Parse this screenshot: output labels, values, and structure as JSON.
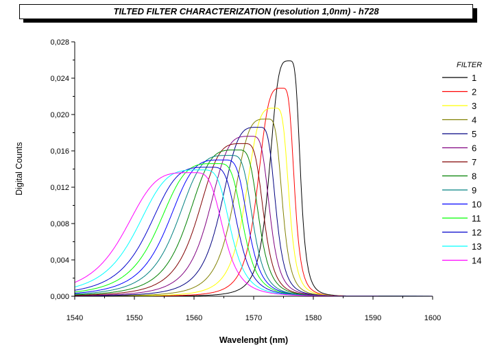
{
  "chart_data": {
    "type": "line",
    "title": "TILTED FILTER CHARACTERIZATION (resolution 1,0nm) - h728",
    "xlabel": "Wavelenght (nm)",
    "ylabel": "Digital Counts",
    "xlim": [
      1540,
      1600
    ],
    "ylim": [
      0,
      0.028
    ],
    "x_ticks": [
      1540,
      1550,
      1560,
      1570,
      1580,
      1590,
      1600
    ],
    "x_tick_labels": [
      "1540",
      "1550",
      "1560",
      "1570",
      "1580",
      "1590",
      "1600"
    ],
    "y_ticks": [
      0,
      0.004,
      0.008,
      0.012,
      0.016,
      0.02,
      0.024,
      0.028
    ],
    "y_tick_labels": [
      "0,000",
      "0,004",
      "0,008",
      "0,012",
      "0,016",
      "0,020",
      "0,024",
      "0,028"
    ],
    "grid": false,
    "legend_title": "FILTER",
    "legend_position": "right",
    "series": [
      {
        "name": "1",
        "color": "#000000",
        "peak_x": 1576.0,
        "peak_y": 0.0259,
        "left_width": 3.5,
        "right_width": 1.9
      },
      {
        "name": "2",
        "color": "#ff0000",
        "peak_x": 1574.8,
        "peak_y": 0.0229,
        "left_width": 4.3,
        "right_width": 2.1
      },
      {
        "name": "3",
        "color": "#ffff00",
        "peak_x": 1573.6,
        "peak_y": 0.0207,
        "left_width": 5.1,
        "right_width": 2.4
      },
      {
        "name": "4",
        "color": "#808000",
        "peak_x": 1572.3,
        "peak_y": 0.0195,
        "left_width": 5.9,
        "right_width": 2.6
      },
      {
        "name": "5",
        "color": "#000080",
        "peak_x": 1570.9,
        "peak_y": 0.0186,
        "left_width": 6.6,
        "right_width": 2.9
      },
      {
        "name": "6",
        "color": "#800080",
        "peak_x": 1569.6,
        "peak_y": 0.0176,
        "left_width": 7.3,
        "right_width": 3.2
      },
      {
        "name": "7",
        "color": "#800000",
        "peak_x": 1568.4,
        "peak_y": 0.0168,
        "left_width": 8.0,
        "right_width": 3.4
      },
      {
        "name": "8",
        "color": "#008000",
        "peak_x": 1567.3,
        "peak_y": 0.0161,
        "left_width": 8.6,
        "right_width": 3.7
      },
      {
        "name": "9",
        "color": "#008080",
        "peak_x": 1566.1,
        "peak_y": 0.0155,
        "left_width": 9.2,
        "right_width": 3.9
      },
      {
        "name": "10",
        "color": "#0000ff",
        "peak_x": 1565.0,
        "peak_y": 0.015,
        "left_width": 9.7,
        "right_width": 4.2
      },
      {
        "name": "11",
        "color": "#00ff00",
        "peak_x": 1563.9,
        "peak_y": 0.0146,
        "left_width": 10.2,
        "right_width": 4.5
      },
      {
        "name": "12",
        "color": "#0000cc",
        "peak_x": 1562.8,
        "peak_y": 0.0142,
        "left_width": 10.7,
        "right_width": 4.7
      },
      {
        "name": "13",
        "color": "#00ffff",
        "peak_x": 1561.3,
        "peak_y": 0.0139,
        "left_width": 11.3,
        "right_width": 5.0
      },
      {
        "name": "14",
        "color": "#ff00ff",
        "peak_x": 1559.8,
        "peak_y": 0.0136,
        "left_width": 11.8,
        "right_width": 5.3
      }
    ]
  }
}
